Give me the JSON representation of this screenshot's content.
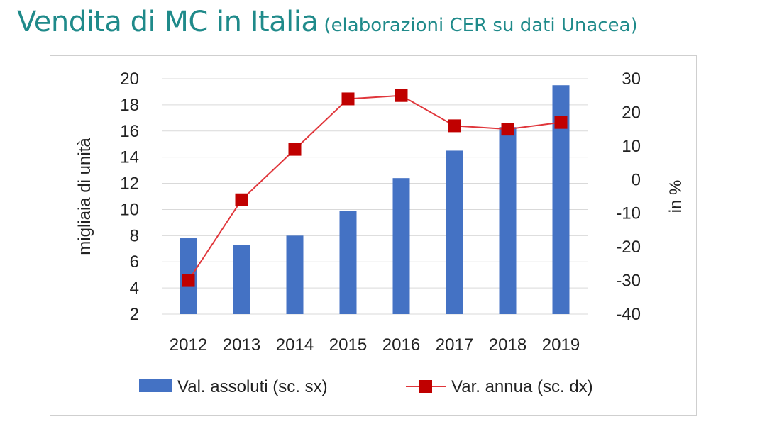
{
  "title": {
    "main": "Vendita di MC in Italia",
    "subtitle": "(elaborazioni CER su dati Unacea)"
  },
  "colors": {
    "title": "#1f8a8a",
    "bars": "#4472c4",
    "line": "#e0363b",
    "marker": "#c00000",
    "grid": "#d9d9d9"
  },
  "chart_data": {
    "type": "bar",
    "categories": [
      "2012",
      "2013",
      "2014",
      "2015",
      "2016",
      "2017",
      "2018",
      "2019"
    ],
    "series": [
      {
        "name": "Val. assoluti (sc. sx)",
        "type": "bar",
        "axis": "left",
        "values": [
          7.8,
          7.3,
          8.0,
          9.9,
          12.4,
          14.5,
          16.3,
          19.5
        ]
      },
      {
        "name": "Var. annua (sc. dx)",
        "type": "line",
        "axis": "right",
        "values": [
          -30,
          -6,
          9,
          24,
          25,
          16,
          15,
          17
        ]
      }
    ],
    "ylabel": "migliaia di unità",
    "y2label": "in %",
    "ylim": [
      2,
      20
    ],
    "y2lim": [
      -40,
      30
    ],
    "yticks": [
      "20",
      "18",
      "16",
      "14",
      "12",
      "10",
      "8",
      "6",
      "4",
      "2"
    ],
    "y2ticks": [
      "30",
      "20",
      "10",
      "0",
      "-10",
      "-20",
      "-30",
      "-40"
    ],
    "grid": true,
    "legend": "bottom"
  }
}
